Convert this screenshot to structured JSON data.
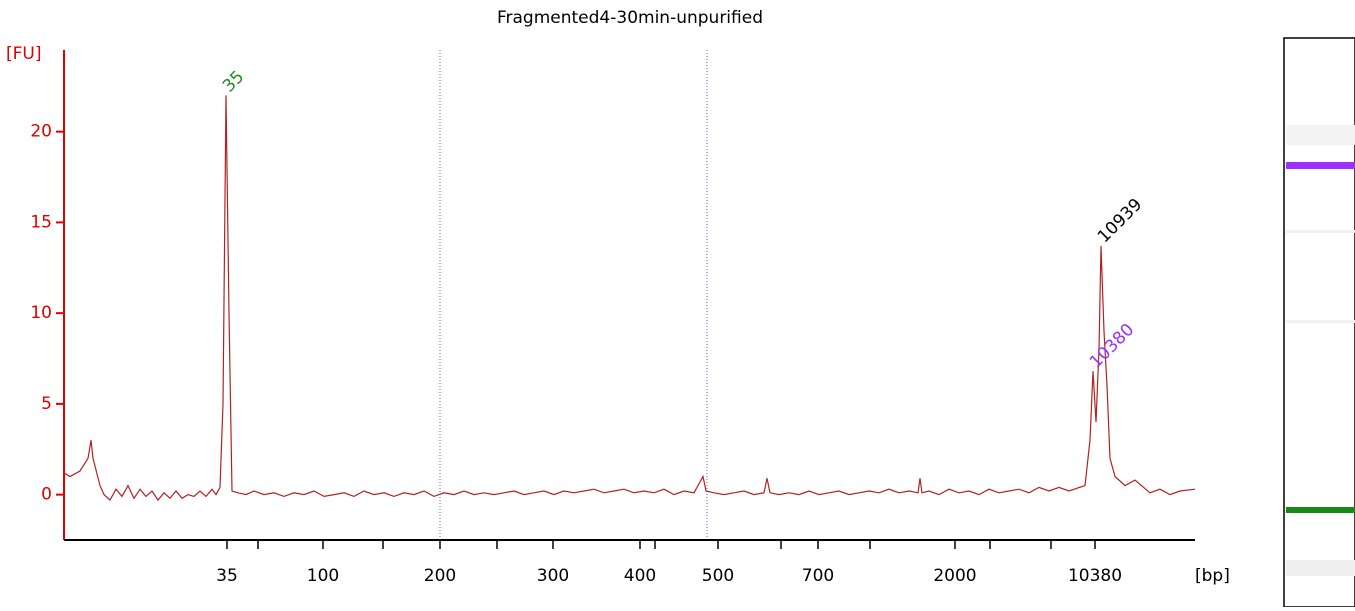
{
  "chart_data": {
    "type": "line",
    "title": "Fragmented4-30min-unpurified",
    "y_label": "[FU]",
    "x_label": "[bp]",
    "color": "#b22222",
    "axis_color": "#e00000",
    "xlim": [
      0,
      113.1
    ],
    "ylim": [
      -2.5,
      24.5
    ],
    "yticks": [
      0,
      5,
      10,
      15,
      20
    ],
    "xticks": [
      {
        "value": 16.3,
        "label": "35"
      },
      {
        "value": 25.9,
        "label": "100"
      },
      {
        "value": 37.6,
        "label": "200"
      },
      {
        "value": 48.9,
        "label": "300"
      },
      {
        "value": 57.6,
        "label": "400"
      },
      {
        "value": 65.4,
        "label": "500"
      },
      {
        "value": 75.4,
        "label": "700"
      },
      {
        "value": 89.1,
        "label": "2000"
      },
      {
        "value": 103.1,
        "label": "10380"
      }
    ],
    "minor_xticks": [
      19.4,
      31.9,
      43.3,
      59.1,
      71.7,
      80.6,
      92.6,
      98.7
    ],
    "reference_lines": [
      37.6,
      64.3
    ],
    "peaks": [
      {
        "label": "35",
        "x": 16.2,
        "y": 22.0,
        "color": "#228b22"
      },
      {
        "label": "10939",
        "x": 103.7,
        "y": 13.7,
        "color": "#000000"
      },
      {
        "label": "10380",
        "x": 102.9,
        "y": 6.8,
        "color": "#9b30ff"
      }
    ],
    "x": [
      0,
      0.6,
      1.6,
      2.4,
      2.7,
      2.9,
      3.6,
      4.0,
      4.6,
      5.2,
      5.8,
      6.4,
      7.0,
      7.6,
      8.2,
      8.8,
      9.4,
      10.0,
      10.6,
      11.2,
      11.8,
      12.4,
      13.0,
      13.6,
      14.2,
      14.8,
      15.2,
      15.6,
      15.9,
      16.2,
      16.5,
      16.8,
      17.4,
      18.2,
      19.0,
      20,
      21,
      22,
      23,
      24,
      25,
      26,
      27,
      28,
      29,
      30,
      31,
      32,
      33,
      34,
      35,
      36,
      37,
      38,
      39,
      40,
      41,
      42,
      43,
      44,
      45,
      46,
      47,
      48,
      49,
      50,
      51,
      52,
      53,
      54,
      55,
      56,
      57,
      58,
      59,
      60,
      61,
      62,
      63,
      63.9,
      64.2,
      65,
      66,
      67,
      68,
      69,
      70,
      70.3,
      70.6,
      71.5,
      72.5,
      73.5,
      74.5,
      75.5,
      76.5,
      77.5,
      78.5,
      79.5,
      80.5,
      81.5,
      82.5,
      83.5,
      84.5,
      85.4,
      85.6,
      85.8,
      86.5,
      87.5,
      88.5,
      89.5,
      90.5,
      91.5,
      92.5,
      93.5,
      94.5,
      95.5,
      96.5,
      97.5,
      98.5,
      99.5,
      100.5,
      102.1,
      102.6,
      102.9,
      103.2,
      103.5,
      103.7,
      104.0,
      104.3,
      104.6,
      105.1,
      106.1,
      107.1,
      108.6,
      109.6,
      110.6,
      111.6,
      113.1
    ],
    "values": [
      1.2,
      1.0,
      1.3,
      2.0,
      3.0,
      2.0,
      0.5,
      0.0,
      -0.3,
      0.3,
      -0.1,
      0.5,
      -0.2,
      0.3,
      -0.1,
      0.2,
      -0.3,
      0.1,
      -0.2,
      0.2,
      -0.2,
      0.0,
      -0.1,
      0.2,
      -0.1,
      0.3,
      0.0,
      0.4,
      5.0,
      22.0,
      10.0,
      0.2,
      0.1,
      0.0,
      0.2,
      0.0,
      0.1,
      -0.1,
      0.1,
      0.0,
      0.2,
      -0.1,
      0.0,
      0.1,
      -0.1,
      0.2,
      0.0,
      0.1,
      -0.1,
      0.1,
      0.0,
      0.2,
      -0.1,
      0.1,
      0.0,
      0.2,
      0.0,
      0.1,
      0.0,
      0.1,
      0.2,
      0.0,
      0.1,
      0.2,
      0.0,
      0.2,
      0.1,
      0.2,
      0.3,
      0.1,
      0.2,
      0.3,
      0.1,
      0.2,
      0.1,
      0.3,
      0.0,
      0.2,
      0.1,
      1.0,
      0.2,
      0.1,
      0.0,
      0.1,
      0.2,
      0.0,
      0.1,
      0.9,
      0.1,
      0.0,
      0.1,
      0.0,
      0.2,
      0.0,
      0.1,
      0.2,
      0.0,
      0.1,
      0.2,
      0.1,
      0.3,
      0.1,
      0.2,
      0.1,
      0.9,
      0.1,
      0.2,
      0.0,
      0.3,
      0.1,
      0.2,
      0.0,
      0.3,
      0.1,
      0.2,
      0.3,
      0.1,
      0.4,
      0.2,
      0.4,
      0.2,
      0.5,
      3.0,
      6.8,
      4.0,
      8.0,
      13.7,
      9.0,
      6.0,
      2.0,
      1.0,
      0.5,
      0.8,
      0.1,
      0.3,
      0.0,
      0.2,
      0.3
    ]
  }
}
